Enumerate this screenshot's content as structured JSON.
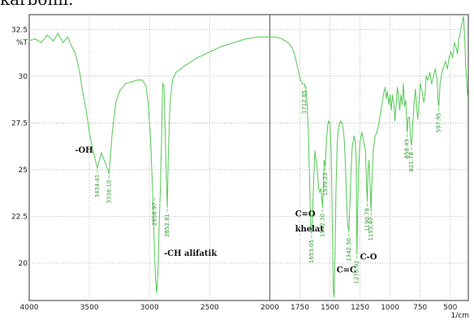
{
  "caption_fragment": "karbonil.",
  "chart_data": {
    "type": "line",
    "title": "",
    "xlabel": "",
    "ylabel": "%T",
    "x_unit": "1/cm",
    "x_reversed": true,
    "xlim": [
      4000,
      350
    ],
    "ylim": [
      18,
      33.3
    ],
    "x_ticks": [
      4000,
      3500,
      3000,
      2500,
      2000,
      1750,
      1500,
      1250,
      1000,
      750,
      500
    ],
    "y_ticks": [
      20,
      22.5,
      25,
      27.5,
      30,
      32.5
    ],
    "grid": "dotted",
    "line_color": "#55c855",
    "series": [
      {
        "name": "",
        "points": [
          [
            4000,
            31.9
          ],
          [
            3950,
            32.0
          ],
          [
            3900,
            31.8
          ],
          [
            3850,
            32.2
          ],
          [
            3800,
            31.9
          ],
          [
            3760,
            32.3
          ],
          [
            3720,
            31.8
          ],
          [
            3680,
            32.1
          ],
          [
            3640,
            31.5
          ],
          [
            3620,
            31.3
          ],
          [
            3600,
            30.8
          ],
          [
            3580,
            30.2
          ],
          [
            3560,
            29.3
          ],
          [
            3530,
            28.3
          ],
          [
            3500,
            27.0
          ],
          [
            3470,
            26.0
          ],
          [
            3434,
            25.1
          ],
          [
            3400,
            25.9
          ],
          [
            3370,
            25.4
          ],
          [
            3336,
            24.8
          ],
          [
            3310,
            27.0
          ],
          [
            3280,
            28.6
          ],
          [
            3250,
            29.2
          ],
          [
            3200,
            29.6
          ],
          [
            3150,
            29.7
          ],
          [
            3100,
            29.8
          ],
          [
            3060,
            29.8
          ],
          [
            3030,
            29.5
          ],
          [
            3010,
            28.5
          ],
          [
            2990,
            26.5
          ],
          [
            2975,
            24.0
          ],
          [
            2960,
            21.0
          ],
          [
            2950,
            19.2
          ],
          [
            2940,
            18.4
          ],
          [
            2930,
            19.5
          ],
          [
            2920,
            22.0
          ],
          [
            2910,
            24.0
          ],
          [
            2900,
            26.5
          ],
          [
            2895,
            28.5
          ],
          [
            2890,
            29.6
          ],
          [
            2880,
            29.5
          ],
          [
            2870,
            27.0
          ],
          [
            2860,
            24.5
          ],
          [
            2852,
            23.0
          ],
          [
            2845,
            25.5
          ],
          [
            2830,
            28.5
          ],
          [
            2810,
            29.8
          ],
          [
            2780,
            30.2
          ],
          [
            2700,
            30.6
          ],
          [
            2600,
            31.0
          ],
          [
            2500,
            31.3
          ],
          [
            2400,
            31.6
          ],
          [
            2300,
            31.8
          ],
          [
            2200,
            32.0
          ],
          [
            2100,
            32.1
          ],
          [
            2000,
            32.1
          ],
          [
            1950,
            32.1
          ],
          [
            1900,
            32.0
          ],
          [
            1850,
            31.8
          ],
          [
            1820,
            31.6
          ],
          [
            1800,
            31.3
          ],
          [
            1780,
            30.8
          ],
          [
            1760,
            30.2
          ],
          [
            1745,
            29.8
          ],
          [
            1730,
            29.6
          ],
          [
            1713,
            29.6
          ],
          [
            1700,
            29.4
          ],
          [
            1690,
            28.5
          ],
          [
            1680,
            27.0
          ],
          [
            1670,
            24.5
          ],
          [
            1660,
            22.0
          ],
          [
            1653,
            21.6
          ],
          [
            1645,
            22.5
          ],
          [
            1635,
            24.5
          ],
          [
            1625,
            26.0
          ],
          [
            1615,
            25.5
          ],
          [
            1605,
            25.0
          ],
          [
            1595,
            24.0
          ],
          [
            1585,
            23.8
          ],
          [
            1575,
            24.0
          ],
          [
            1562,
            23.0
          ],
          [
            1555,
            24.0
          ],
          [
            1548,
            25.5
          ],
          [
            1539,
            25.2
          ],
          [
            1530,
            26.5
          ],
          [
            1520,
            27.3
          ],
          [
            1512,
            27.6
          ],
          [
            1500,
            27.5
          ],
          [
            1490,
            26.0
          ],
          [
            1480,
            22.0
          ],
          [
            1472,
            18.5
          ],
          [
            1465,
            18.2
          ],
          [
            1458,
            20.5
          ],
          [
            1450,
            24.0
          ],
          [
            1440,
            26.3
          ],
          [
            1430,
            27.2
          ],
          [
            1420,
            27.5
          ],
          [
            1410,
            27.6
          ],
          [
            1400,
            27.5
          ],
          [
            1390,
            27.2
          ],
          [
            1380,
            26.5
          ],
          [
            1370,
            25.0
          ],
          [
            1360,
            23.0
          ],
          [
            1352,
            22.0
          ],
          [
            1343,
            21.7
          ],
          [
            1335,
            23.0
          ],
          [
            1325,
            25.0
          ],
          [
            1315,
            26.2
          ],
          [
            1300,
            26.8
          ],
          [
            1290,
            26.5
          ],
          [
            1282,
            25.5
          ],
          [
            1276,
            20.5
          ],
          [
            1270,
            22.5
          ],
          [
            1262,
            25.0
          ],
          [
            1250,
            26.5
          ],
          [
            1235,
            27.0
          ],
          [
            1220,
            26.5
          ],
          [
            1205,
            26.0
          ],
          [
            1195,
            24.0
          ],
          [
            1190,
            23.3
          ],
          [
            1183,
            25.0
          ],
          [
            1175,
            25.5
          ],
          [
            1165,
            24.0
          ],
          [
            1158,
            22.8
          ],
          [
            1150,
            24.5
          ],
          [
            1140,
            26.0
          ],
          [
            1125,
            26.8
          ],
          [
            1110,
            27.0
          ],
          [
            1095,
            27.4
          ],
          [
            1080,
            28.0
          ],
          [
            1065,
            28.6
          ],
          [
            1050,
            29.2
          ],
          [
            1040,
            29.4
          ],
          [
            1032,
            28.8
          ],
          [
            1022,
            29.2
          ],
          [
            1010,
            28.5
          ],
          [
            1000,
            29.0
          ],
          [
            990,
            28.2
          ],
          [
            980,
            29.0
          ],
          [
            970,
            28.6
          ],
          [
            960,
            27.6
          ],
          [
            950,
            28.5
          ],
          [
            940,
            29.4
          ],
          [
            930,
            29.0
          ],
          [
            920,
            28.2
          ],
          [
            910,
            29.0
          ],
          [
            900,
            28.5
          ],
          [
            890,
            29.6
          ],
          [
            880,
            28.4
          ],
          [
            870,
            28.7
          ],
          [
            858,
            27.0
          ],
          [
            850,
            27.8
          ],
          [
            840,
            27.8
          ],
          [
            830,
            26.6
          ],
          [
            822,
            26.3
          ],
          [
            810,
            27.6
          ],
          [
            800,
            28.6
          ],
          [
            790,
            29.3
          ],
          [
            780,
            28.4
          ],
          [
            770,
            27.7
          ],
          [
            760,
            28.6
          ],
          [
            750,
            29.6
          ],
          [
            735,
            29.2
          ],
          [
            720,
            28.6
          ],
          [
            710,
            29.0
          ],
          [
            700,
            30.0
          ],
          [
            685,
            29.8
          ],
          [
            670,
            30.2
          ],
          [
            655,
            29.6
          ],
          [
            640,
            30.0
          ],
          [
            625,
            30.4
          ],
          [
            610,
            29.8
          ],
          [
            600,
            28.6
          ],
          [
            595,
            28.4
          ],
          [
            585,
            29.6
          ],
          [
            570,
            30.2
          ],
          [
            555,
            30.5
          ],
          [
            540,
            30.8
          ],
          [
            525,
            30.4
          ],
          [
            510,
            31.0
          ],
          [
            495,
            31.3
          ],
          [
            480,
            31.0
          ],
          [
            465,
            31.8
          ],
          [
            450,
            31.5
          ],
          [
            440,
            31.2
          ],
          [
            430,
            32.0
          ],
          [
            420,
            32.2
          ],
          [
            410,
            32.6
          ],
          [
            400,
            32.9
          ],
          [
            390,
            33.2
          ],
          [
            380,
            32.0
          ],
          [
            372,
            30.6
          ],
          [
            365,
            30.0
          ],
          [
            358,
            29.2
          ],
          [
            352,
            28.8
          ]
        ]
      }
    ],
    "peak_labels": [
      {
        "x": 3434,
        "y": 25.1,
        "text": "3434.41"
      },
      {
        "x": 3336,
        "y": 24.8,
        "text": "3336.10"
      },
      {
        "x": 2956,
        "y": 23.6,
        "text": "2958.97"
      },
      {
        "x": 2852,
        "y": 23.0,
        "text": "2852.81"
      },
      {
        "x": 1713,
        "y": 29.6,
        "text": "1712.85"
      },
      {
        "x": 1653,
        "y": 21.6,
        "text": "1653.05"
      },
      {
        "x": 1562,
        "y": 23.0,
        "text": "1562.30"
      },
      {
        "x": 1539,
        "y": 25.2,
        "text": "1539.23"
      },
      {
        "x": 1343,
        "y": 21.7,
        "text": "1342.50"
      },
      {
        "x": 1276,
        "y": 20.5,
        "text": "1276.92"
      },
      {
        "x": 1190,
        "y": 23.3,
        "text": "1190.78"
      },
      {
        "x": 1158,
        "y": 22.8,
        "text": "1155.40"
      },
      {
        "x": 858,
        "y": 27.0,
        "text": "858.49"
      },
      {
        "x": 822,
        "y": 26.3,
        "text": "821.78"
      },
      {
        "x": 597,
        "y": 28.4,
        "text": "597.95"
      }
    ],
    "annotations": [
      {
        "text": "-OH",
        "x": 3620,
        "y": 25.9
      },
      {
        "text": "-CH alifatik",
        "x": 2880,
        "y": 20.4
      },
      {
        "text": "C=O",
        "x": 1790,
        "y": 22.5
      },
      {
        "text": "khelat",
        "x": 1790,
        "y": 21.7
      },
      {
        "text": "C=C",
        "x": 1445,
        "y": 19.5
      },
      {
        "text": "C-O",
        "x": 1250,
        "y": 20.2
      }
    ]
  }
}
